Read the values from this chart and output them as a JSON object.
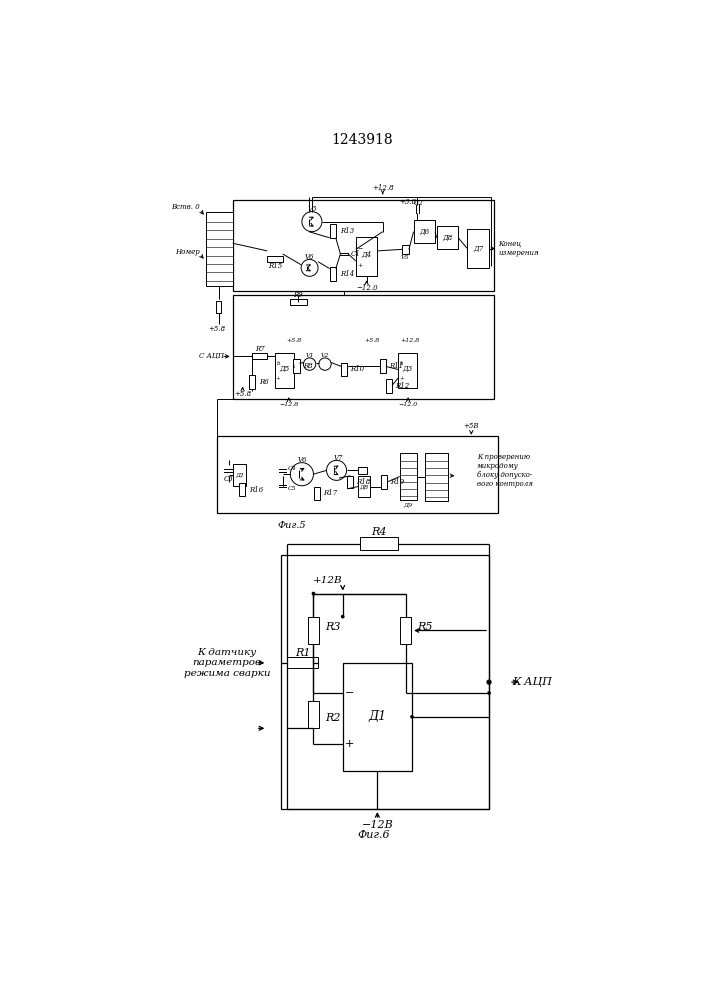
{
  "title": "1243918",
  "fig5_label": "Фиг.5",
  "fig6_label": "Фиг.6",
  "background_color": "#ffffff",
  "line_color": "#000000",
  "title_fontsize": 10,
  "fig5_label_fontsize": 7,
  "fig6_label_fontsize": 8,
  "small_font": 5.0,
  "med_font": 6.5,
  "lw_main": 0.9,
  "lw_thin": 0.7
}
